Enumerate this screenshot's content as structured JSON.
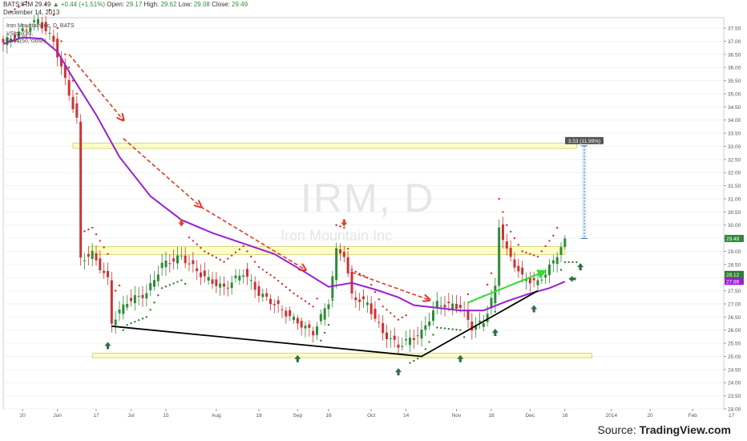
{
  "header": {
    "symbol": "BATS:IRM",
    "last": "29.49",
    "change": "+0.44 (+1.51%)",
    "open_label": "Open:",
    "open": "29.17",
    "high_label": "High:",
    "high": "29.62",
    "low_label": "Low:",
    "low": "29.08",
    "close_label": "Close:",
    "close": "29.49",
    "date": "December 14, 2013"
  },
  "legend": {
    "line1": "Iron Mountain Inc, D, BATS",
    "line2": "VStop (20,",
    "line3": "EMA (50, close)"
  },
  "watermark": {
    "ticker": "IRM, D",
    "name": "Iron Mountain Inc"
  },
  "source": {
    "prefix": "Source: ",
    "brand": "TradingView.com"
  },
  "colors": {
    "up": "#2e8b3a",
    "down": "#cc3333",
    "ema": "#9a1fd0",
    "vstop_down": "#d32f2f",
    "vstop_up": "#2e7d32",
    "zone_fill": "#ffff99",
    "zone_stroke": "#cccc66",
    "arrow": "#2f6e44",
    "trend": "#000000",
    "green_arrow": "#33dd33"
  },
  "chart_data": {
    "type": "candlestick",
    "y_axis": {
      "range": [
        23.0,
        37.9
      ],
      "ticks": [
        "23.00",
        "23.50",
        "24.00",
        "24.50",
        "25.00",
        "25.50",
        "26.00",
        "26.50",
        "27.00",
        "27.50",
        "28.00",
        "28.50",
        "29.00",
        "29.50",
        "30.00",
        "30.50",
        "31.00",
        "31.50",
        "32.00",
        "32.50",
        "33.00",
        "33.50",
        "34.00",
        "34.50",
        "35.00",
        "35.50",
        "36.00",
        "36.50",
        "37.00",
        "37.50"
      ]
    },
    "x_axis": {
      "range": [
        0,
        186
      ],
      "ticks": [
        {
          "i": 5,
          "label": "20"
        },
        {
          "i": 14,
          "label": "Jun"
        },
        {
          "i": 24,
          "label": "17"
        },
        {
          "i": 33,
          "label": "Jul"
        },
        {
          "i": 42,
          "label": "15"
        },
        {
          "i": 55,
          "label": "Aug"
        },
        {
          "i": 66,
          "label": "19"
        },
        {
          "i": 76,
          "label": "Sep"
        },
        {
          "i": 84,
          "label": "16"
        },
        {
          "i": 95,
          "label": "Oct"
        },
        {
          "i": 104,
          "label": "14"
        },
        {
          "i": 117,
          "label": "Nov"
        },
        {
          "i": 126,
          "label": "18"
        },
        {
          "i": 136,
          "label": "Dec"
        },
        {
          "i": 145,
          "label": "16"
        },
        {
          "i": 157,
          "label": "2014"
        },
        {
          "i": 167,
          "label": "20"
        },
        {
          "i": 178,
          "label": "Feb"
        },
        {
          "i": 188,
          "label": "17"
        }
      ]
    },
    "candles": [
      [
        29.17,
        29.62,
        29.08,
        29.49
      ]
    ],
    "ema50": [
      [
        0,
        36.9
      ],
      [
        5,
        37.15
      ],
      [
        10,
        37.1
      ],
      [
        14,
        36.6
      ],
      [
        18,
        35.6
      ],
      [
        24,
        34.2
      ],
      [
        30,
        32.6
      ],
      [
        38,
        31.1
      ],
      [
        46,
        30.2
      ],
      [
        54,
        29.7
      ],
      [
        62,
        29.3
      ],
      [
        70,
        28.9
      ],
      [
        78,
        28.2
      ],
      [
        84,
        27.65
      ],
      [
        90,
        27.8
      ],
      [
        96,
        27.55
      ],
      [
        102,
        27.25
      ],
      [
        106,
        26.95
      ],
      [
        112,
        26.85
      ],
      [
        118,
        26.75
      ],
      [
        124,
        26.75
      ],
      [
        130,
        27.1
      ],
      [
        136,
        27.4
      ],
      [
        141,
        27.6
      ],
      [
        145,
        27.85
      ]
    ],
    "price_labels": [
      {
        "value": 29.49,
        "text": "29.49",
        "color": "#2e8b3a"
      },
      {
        "value": 28.12,
        "text": "28.12",
        "color": "#2e7d32"
      },
      {
        "value": 27.86,
        "text": "27.86",
        "color": "#9a1fd0"
      }
    ],
    "measure": {
      "from": 29.49,
      "to": 33.02,
      "text": "3.53 (11.99%)",
      "x": 150
    },
    "zones": [
      {
        "y_low": 32.92,
        "y_high": 33.12,
        "x_start": 18,
        "x_end": 148
      },
      {
        "y_low": 28.88,
        "y_high": 29.18,
        "x_start": 22,
        "x_end": 145
      },
      {
        "y_low": 24.95,
        "y_high": 25.12,
        "x_start": 23,
        "x_end": 152
      }
    ],
    "trendlines": [
      {
        "from": [
          28,
          26.15
        ],
        "to": [
          108,
          25.0
        ],
        "color": "#000000"
      },
      {
        "from": [
          108,
          25.0
        ],
        "to": [
          138,
          27.5
        ],
        "color": "#000000"
      },
      {
        "from": [
          120,
          27.05
        ],
        "to": [
          140,
          28.25
        ],
        "color": "#33dd33",
        "arrow": true
      }
    ],
    "dashed_arrows": [
      {
        "from": [
          17,
          36.5
        ],
        "to": [
          31,
          34.0
        ]
      },
      {
        "from": [
          31,
          33.3
        ],
        "to": [
          51,
          30.7
        ]
      },
      {
        "from": [
          51,
          30.7
        ],
        "to": [
          78,
          28.3
        ]
      },
      {
        "from": [
          90,
          28.2
        ],
        "to": [
          110,
          27.15
        ]
      }
    ],
    "arrows_up": [
      {
        "i": 27,
        "y": 25.4
      },
      {
        "i": 76,
        "y": 24.9
      },
      {
        "i": 102,
        "y": 24.4
      },
      {
        "i": 118,
        "y": 24.9
      },
      {
        "i": 127,
        "y": 25.9
      },
      {
        "i": 137,
        "y": 26.8
      },
      {
        "i": 149,
        "y": 28.4
      }
    ],
    "arrows_down": [
      {
        "i": 46,
        "y": 30.1
      },
      {
        "i": 88,
        "y": 30.1
      }
    ],
    "arrows_left": [
      {
        "i": 147,
        "y": 27.95
      }
    ]
  }
}
